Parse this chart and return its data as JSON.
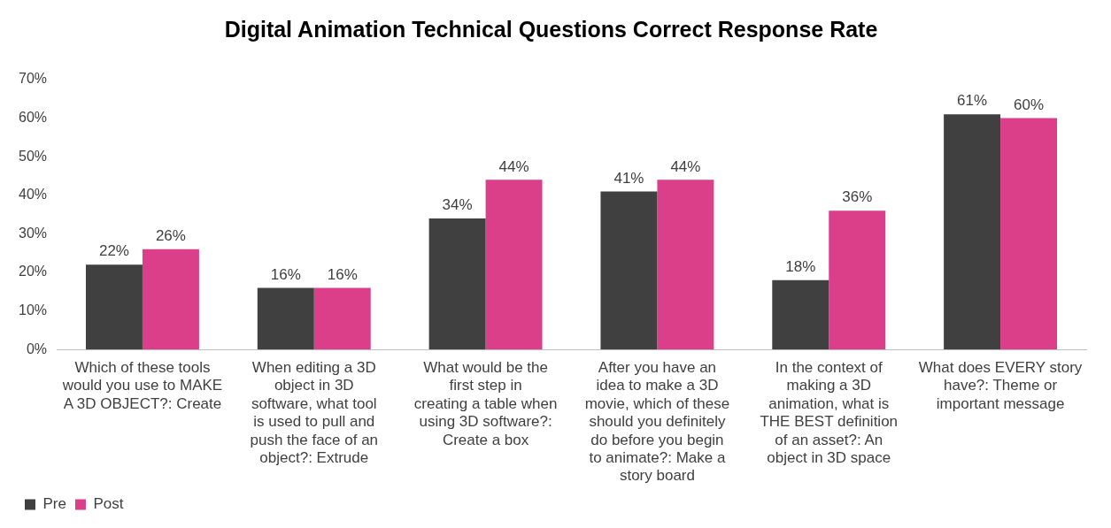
{
  "chart_data": {
    "type": "bar",
    "title": "Digital Animation Technical Questions Correct Response Rate",
    "categories": [
      "Which of these tools would you use to MAKE A 3D OBJECT?: Create",
      "When editing a 3D object in 3D software, what tool is used to pull and push the face of an object?: Extrude",
      "What would be the first step in creating a table when using 3D software?: Create a box",
      "After you have an idea to make a 3D movie, which of these should you definitely do before you begin to animate?: Make a story board",
      "In the context of making a 3D animation, what is THE BEST definition of an asset?: An object in 3D space",
      "What does EVERY story have?: Theme or important message"
    ],
    "series": [
      {
        "name": "Pre",
        "color": "#404040",
        "values": [
          22,
          16,
          34,
          41,
          18,
          61
        ],
        "value_labels": [
          "22%",
          "16%",
          "34%",
          "41%",
          "18%",
          "61%"
        ]
      },
      {
        "name": "Post",
        "color": "#db3f8a",
        "values": [
          26,
          16,
          44,
          44,
          36,
          60
        ],
        "value_labels": [
          "26%",
          "16%",
          "44%",
          "44%",
          "36%",
          "60%"
        ]
      }
    ],
    "ylim": [
      0,
      70
    ],
    "yticks": [
      {
        "value": 0,
        "label": "0%"
      },
      {
        "value": 10,
        "label": "10%"
      },
      {
        "value": 20,
        "label": "20%"
      },
      {
        "value": 30,
        "label": "30%"
      },
      {
        "value": 40,
        "label": "40%"
      },
      {
        "value": 50,
        "label": "50%"
      },
      {
        "value": 60,
        "label": "60%"
      },
      {
        "value": 70,
        "label": "70%"
      }
    ],
    "grid": false,
    "legend": "bottom left"
  }
}
